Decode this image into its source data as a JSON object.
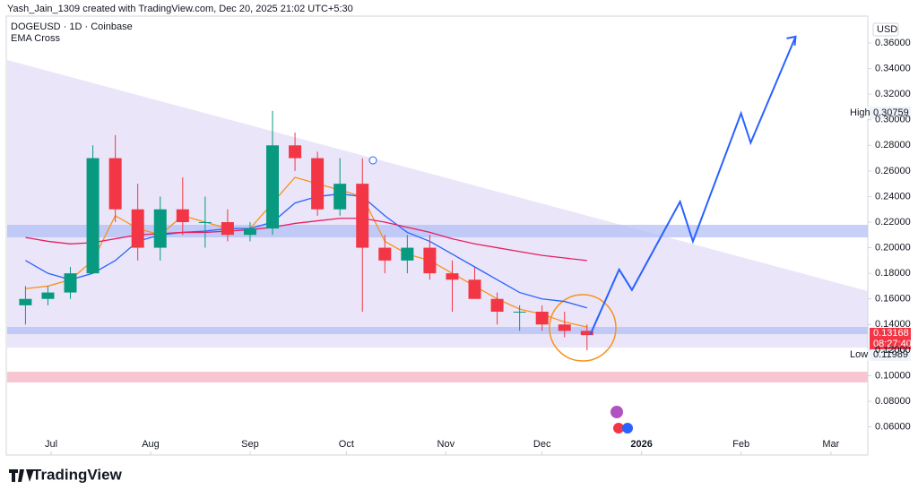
{
  "header": {
    "byline": "Yash_Jain_1309 created with TradingView.com, Dec 20, 2025 21:02 UTC+5:30",
    "symbol": "DOGEUSD · 1D · Coinbase",
    "indicator": "EMA Cross"
  },
  "footer": {
    "brand": "TradingView"
  },
  "chart_data": {
    "type": "candlestick",
    "currency": "USD",
    "high_label": "High",
    "high_value": "0.30759",
    "low_label": "Low",
    "low_value": "0.11989",
    "last_price": "0.13168",
    "countdown": "08:27:40",
    "xlim": [
      -13.7,
      254.5
    ],
    "ylim": [
      0.038,
      0.381
    ],
    "grid": false,
    "xticks": [
      {
        "value": 0,
        "label": "Jul"
      },
      {
        "value": 31,
        "label": "Aug"
      },
      {
        "value": 62,
        "label": "Sep"
      },
      {
        "value": 92,
        "label": "Oct"
      },
      {
        "value": 123,
        "label": "Nov"
      },
      {
        "value": 153,
        "label": "Dec"
      },
      {
        "value": 184,
        "label": "2026"
      },
      {
        "value": 215,
        "label": "Feb"
      },
      {
        "value": 243,
        "label": "Mar"
      }
    ],
    "yticks": [
      {
        "value": 0.06,
        "label": "0.06000"
      },
      {
        "value": 0.08,
        "label": "0.08000"
      },
      {
        "value": 0.1,
        "label": "0.10000"
      },
      {
        "value": 0.12,
        "label": "0.12000"
      },
      {
        "value": 0.14,
        "label": "0.14000"
      },
      {
        "value": 0.16,
        "label": "0.16000"
      },
      {
        "value": 0.18,
        "label": "0.18000"
      },
      {
        "value": 0.2,
        "label": "0.20000"
      },
      {
        "value": 0.22,
        "label": "0.22000"
      },
      {
        "value": 0.24,
        "label": "0.24000"
      },
      {
        "value": 0.26,
        "label": "0.26000"
      },
      {
        "value": 0.28,
        "label": "0.28000"
      },
      {
        "value": 0.3,
        "label": "0.30000"
      },
      {
        "value": 0.32,
        "label": "0.32000"
      },
      {
        "value": 0.34,
        "label": "0.34000"
      },
      {
        "value": 0.36,
        "label": "0.36000"
      }
    ],
    "x": [
      -8,
      -1,
      6,
      13,
      20,
      27,
      34,
      41,
      48,
      55,
      62,
      69,
      76,
      83,
      90,
      97,
      104,
      111,
      118,
      125,
      132,
      139,
      146,
      153,
      160,
      167
    ],
    "open": [
      0.155,
      0.16,
      0.165,
      0.18,
      0.27,
      0.23,
      0.2,
      0.23,
      0.22,
      0.22,
      0.21,
      0.215,
      0.28,
      0.27,
      0.23,
      0.25,
      0.2,
      0.19,
      0.2,
      0.18,
      0.175,
      0.16,
      0.15,
      0.15,
      0.14,
      0.135
    ],
    "high": [
      0.17,
      0.17,
      0.185,
      0.28,
      0.288,
      0.25,
      0.24,
      0.255,
      0.24,
      0.23,
      0.22,
      0.307,
      0.29,
      0.275,
      0.27,
      0.27,
      0.21,
      0.21,
      0.21,
      0.19,
      0.185,
      0.165,
      0.155,
      0.155,
      0.15,
      0.14
    ],
    "low": [
      0.14,
      0.155,
      0.16,
      0.18,
      0.22,
      0.19,
      0.19,
      0.21,
      0.2,
      0.205,
      0.205,
      0.21,
      0.26,
      0.225,
      0.225,
      0.15,
      0.18,
      0.18,
      0.175,
      0.15,
      0.16,
      0.14,
      0.135,
      0.135,
      0.13,
      0.1199
    ],
    "close": [
      0.16,
      0.165,
      0.18,
      0.27,
      0.23,
      0.2,
      0.23,
      0.22,
      0.22,
      0.21,
      0.215,
      0.28,
      0.27,
      0.23,
      0.25,
      0.2,
      0.19,
      0.2,
      0.18,
      0.175,
      0.16,
      0.15,
      0.15,
      0.14,
      0.135,
      0.1317
    ],
    "colors": {
      "up": "#089981",
      "down": "#f23645"
    },
    "series": [
      {
        "color": "#f7931a",
        "values": [
          0.168,
          0.17,
          0.175,
          0.19,
          0.225,
          0.215,
          0.21,
          0.225,
          0.22,
          0.215,
          0.215,
          0.235,
          0.255,
          0.25,
          0.245,
          0.24,
          0.205,
          0.195,
          0.19,
          0.18,
          0.17,
          0.16,
          0.152,
          0.148,
          0.142,
          0.138
        ]
      },
      {
        "color": "#2962ff",
        "values": [
          0.19,
          0.18,
          0.175,
          0.18,
          0.19,
          0.205,
          0.21,
          0.212,
          0.213,
          0.215,
          0.215,
          0.22,
          0.235,
          0.24,
          0.242,
          0.24,
          0.225,
          0.212,
          0.205,
          0.195,
          0.185,
          0.175,
          0.165,
          0.16,
          0.158,
          0.153
        ]
      },
      {
        "color": "#e91e63",
        "values": [
          0.208,
          0.205,
          0.203,
          0.204,
          0.207,
          0.21,
          0.211,
          0.212,
          0.212,
          0.213,
          0.214,
          0.216,
          0.219,
          0.221,
          0.223,
          0.223,
          0.22,
          0.216,
          0.212,
          0.207,
          0.203,
          0.2,
          0.197,
          0.194,
          0.192,
          0.19
        ]
      }
    ],
    "projection": {
      "color": "#2962ff",
      "x": [
        168,
        177,
        181,
        196,
        200,
        215,
        218,
        232
      ],
      "values": [
        0.132,
        0.183,
        0.167,
        0.236,
        0.205,
        0.305,
        0.282,
        0.365
      ]
    }
  }
}
